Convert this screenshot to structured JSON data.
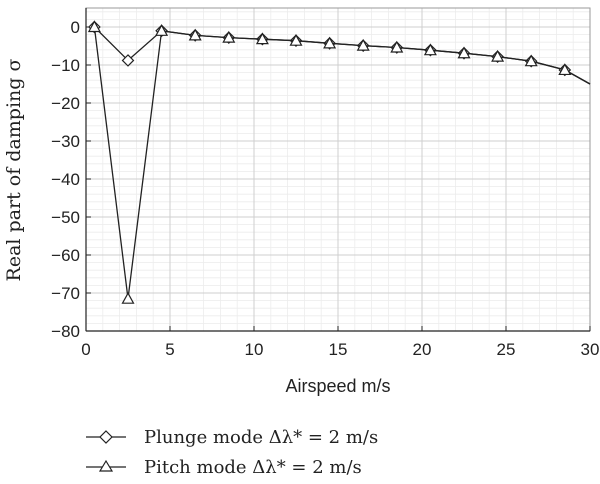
{
  "chart_data": {
    "type": "line",
    "xlabel": "Airspeed m/s",
    "ylabel": "Real part of damping σ",
    "xlim": [
      0,
      30
    ],
    "ylim": [
      -80,
      5
    ],
    "x_ticks": [
      0,
      5,
      10,
      15,
      20,
      25,
      30
    ],
    "y_ticks": [
      0,
      -10,
      -20,
      -30,
      -40,
      -50,
      -60,
      -70,
      -80
    ],
    "x_tick_labels": [
      "0",
      "5",
      "10",
      "15",
      "20",
      "25",
      "30"
    ],
    "y_tick_labels": [
      "0",
      "−10",
      "−20",
      "−30",
      "−40",
      "−50",
      "−60",
      "−70",
      "−80"
    ],
    "grid": true,
    "legend_placement": "bottom",
    "series": [
      {
        "name": "Plunge mode Δλ* = 2 m/s",
        "marker": "diamond",
        "color": "#222222",
        "x": [
          0.5,
          2.5,
          4.5,
          6.5,
          8.5,
          10.5,
          12.5,
          14.5,
          16.5,
          18.5,
          20.5,
          22.5,
          24.5,
          26.5,
          28.5,
          30
        ],
        "y": [
          0,
          -8.8,
          -1,
          -2.2,
          -2.8,
          -3.2,
          -3.6,
          -4.3,
          -4.9,
          -5.4,
          -6.1,
          -6.9,
          -7.8,
          -9,
          -11.3,
          -15
        ]
      },
      {
        "name": "Pitch mode Δλ* = 2 m/s",
        "marker": "triangle",
        "color": "#222222",
        "x": [
          0.5,
          2.5,
          4.5,
          6.5,
          8.5,
          10.5,
          12.5,
          14.5,
          16.5,
          18.5,
          20.5,
          22.5,
          24.5,
          26.5,
          28.5,
          30
        ],
        "y": [
          0,
          -71.5,
          -1,
          -2.2,
          -2.8,
          -3.2,
          -3.6,
          -4.3,
          -4.9,
          -5.4,
          -6.1,
          -6.9,
          -7.8,
          -9,
          -11.3,
          -15
        ]
      }
    ]
  }
}
